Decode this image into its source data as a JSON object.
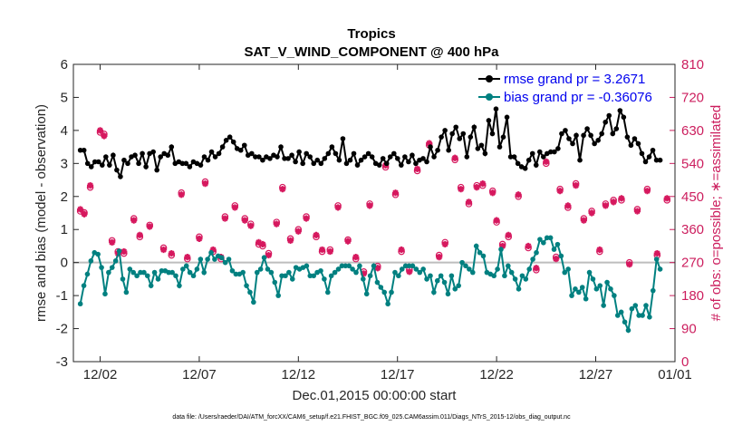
{
  "chart_data": {
    "type": "line",
    "title": "Tropics",
    "subtitle": "SAT_V_WIND_COMPONENT @ 400 hPa",
    "xlabel": "Dec.01,2015 00:00:00 start",
    "ylabel": "rmse and bias (model - observation)",
    "ylabel_right": "# of obs: o=possible; ∗=assimilated",
    "footnote": "data file: /Users/raeder/DAI/ATM_forcXX/CAM6_setup/f.e21.FHIST_BGC.f09_025.CAM6assim.011/Diags_NTrS_2015-12/obs_diag_output.nc",
    "xlim": [
      0.65,
      31
    ],
    "ylim": [
      -3,
      6
    ],
    "ylim_right": [
      0,
      810
    ],
    "xticks": [
      2,
      7,
      12,
      17,
      22,
      27,
      31
    ],
    "xtick_labels": [
      "12/02",
      "12/07",
      "12/12",
      "12/17",
      "12/22",
      "12/27",
      "01/01"
    ],
    "yticks": [
      -3,
      -2,
      -1,
      0,
      1,
      2,
      3,
      4,
      5,
      6
    ],
    "ytick_labels": [
      "-3",
      "-2",
      "-1",
      "0",
      "1",
      "2",
      "3",
      "4",
      "5",
      "6"
    ],
    "yticks_right": [
      0,
      90,
      180,
      270,
      360,
      450,
      540,
      630,
      720,
      810
    ],
    "ytick_labels_right": [
      "0",
      "90",
      "180",
      "270",
      "360",
      "450",
      "540",
      "630",
      "720",
      "810"
    ],
    "legend_position": "top-right",
    "colors": {
      "rmse": "#000000",
      "bias": "#008080",
      "obs": "#d6185e",
      "zero_line": "#bdbdbd",
      "legend_text": "#0000ee"
    },
    "series": [
      {
        "name": "rmse",
        "legend": "rmse grand pr = 3.2671",
        "values": [
          3.4,
          3.4,
          3.0,
          2.9,
          3.05,
          3.05,
          2.95,
          3.2,
          2.95,
          3.25,
          2.8,
          2.6,
          3.1,
          3.0,
          3.2,
          3.25,
          3.0,
          3.3,
          2.9,
          3.3,
          3.35,
          2.8,
          3.2,
          3.3,
          3.25,
          3.5,
          3.0,
          3.05,
          3.0,
          3.0,
          2.9,
          3.05,
          3.0,
          2.95,
          3.2,
          3.1,
          3.35,
          3.2,
          3.3,
          3.5,
          3.7,
          3.8,
          3.65,
          3.45,
          3.4,
          3.55,
          3.25,
          3.3,
          3.2,
          3.2,
          3.1,
          3.2,
          3.15,
          3.25,
          3.2,
          3.5,
          3.15,
          3.15,
          3.25,
          3.05,
          3.35,
          3.0,
          3.3,
          3.2,
          3.0,
          3.1,
          3.0,
          3.15,
          3.3,
          3.5,
          3.3,
          3.1,
          3.75,
          3.0,
          3.1,
          3.3,
          2.95,
          3.1,
          3.2,
          3.3,
          3.2,
          3.0,
          2.95,
          3.15,
          3.0,
          3.2,
          3.3,
          3.15,
          2.95,
          3.2,
          3.05,
          3.25,
          3.0,
          3.1,
          3.15,
          3.05,
          3.5,
          3.2,
          3.4,
          3.8,
          4.0,
          3.4,
          3.9,
          4.1,
          3.75,
          3.9,
          3.2,
          3.8,
          4.1,
          3.45,
          3.55,
          3.3,
          4.3,
          3.9,
          4.65,
          3.5,
          3.8,
          4.4,
          3.2,
          3.2,
          3.0,
          2.9,
          2.85,
          3.1,
          3.3,
          2.95,
          3.35,
          3.2,
          3.3,
          3.35,
          3.35,
          3.45,
          3.9,
          4.0,
          3.75,
          3.6,
          3.85,
          3.1,
          3.85,
          4.05,
          3.85,
          3.6,
          3.7,
          3.9,
          4.25,
          4.45,
          3.9,
          4.05,
          4.6,
          4.4,
          3.8,
          3.55,
          3.75,
          3.6,
          3.3,
          3.05,
          3.2,
          3.4,
          3.1,
          3.1
        ],
        "markers": "filled-circle"
      },
      {
        "name": "bias",
        "legend": "bias grand pr = -0.36076",
        "values": [
          -1.25,
          -0.7,
          -0.35,
          0.05,
          0.3,
          0.25,
          -0.15,
          -0.95,
          -0.3,
          -0.15,
          0.05,
          0.35,
          -0.5,
          -0.9,
          -0.2,
          -0.3,
          -0.4,
          -0.3,
          -0.3,
          -0.4,
          -0.7,
          -0.3,
          -0.5,
          -0.25,
          -0.25,
          -0.3,
          -0.3,
          -0.4,
          -0.7,
          -0.2,
          -0.1,
          -0.3,
          -0.4,
          -0.2,
          0.1,
          -0.3,
          0.1,
          0.3,
          0.1,
          0.2,
          0.15,
          0.0,
          0.1,
          -0.25,
          -0.35,
          -0.35,
          -0.3,
          -0.7,
          -0.9,
          -1.2,
          -0.3,
          -0.2,
          0.15,
          -0.2,
          -0.3,
          -0.6,
          -1.0,
          -0.4,
          -0.4,
          -0.3,
          -0.5,
          -0.15,
          -0.2,
          -0.15,
          -0.1,
          -0.4,
          -0.4,
          -0.3,
          -0.25,
          -0.5,
          -0.9,
          -0.4,
          -0.3,
          -0.2,
          -0.1,
          -0.1,
          -0.1,
          -0.2,
          -0.3,
          -0.1,
          -0.5,
          -0.95,
          -0.4,
          -0.1,
          -0.6,
          -0.75,
          -0.9,
          -1.25,
          -0.9,
          -0.3,
          -0.4,
          -0.2,
          -0.1,
          -0.1,
          -0.1,
          -0.2,
          -0.3,
          -0.2,
          -0.5,
          -0.4,
          -0.9,
          -0.55,
          -0.4,
          -0.6,
          -0.95,
          -0.4,
          -0.8,
          -0.7,
          0.0,
          -0.1,
          -0.2,
          -0.3,
          0.5,
          0.3,
          0.2,
          -0.3,
          -0.35,
          -0.4,
          -0.2,
          0.4,
          -0.4,
          -0.1,
          -0.3,
          -0.5,
          -0.8,
          -0.4,
          -0.5,
          -0.2,
          0.1,
          0.3,
          0.7,
          0.6,
          0.75,
          0.75,
          0.4,
          0.55,
          0.2,
          -0.3,
          -0.2,
          -1.0,
          -0.8,
          -0.9,
          -0.75,
          -1.1,
          -0.3,
          -0.5,
          -0.8,
          -0.7,
          -1.3,
          -0.6,
          -0.8,
          -1.0,
          -1.6,
          -1.5,
          -1.8,
          -2.05,
          -1.4,
          -1.3,
          -1.6,
          -1.6,
          -1.3,
          -1.65,
          -0.85,
          0.1,
          -0.2
        ],
        "markers": "filled-circle"
      }
    ],
    "obs_possible": {
      "x": [
        1.0,
        1.2,
        1.5,
        2.0,
        2.2,
        2.6,
        2.9,
        3.2,
        3.7,
        4.0,
        4.5,
        5.2,
        5.6,
        6.1,
        6.4,
        7.0,
        7.3,
        7.7,
        8.1,
        8.3,
        8.8,
        9.3,
        9.6,
        10.0,
        10.2,
        10.5,
        10.9,
        11.2,
        11.6,
        12.0,
        12.4,
        12.9,
        13.2,
        13.6,
        14.0,
        14.5,
        14.9,
        15.3,
        15.6,
        16.0,
        16.4,
        16.9,
        17.2,
        17.6,
        18.0,
        18.6,
        19.1,
        19.4,
        19.9,
        20.2,
        20.6,
        21.0,
        21.3,
        21.8,
        22.0,
        22.3,
        22.6,
        23.1,
        23.6,
        24.0,
        24.5,
        25.0,
        25.2,
        25.6,
        26.0,
        26.4,
        26.8,
        27.2,
        27.5,
        27.9,
        28.3,
        28.7,
        29.1,
        29.6,
        30.1,
        30.6
      ],
      "y": [
        410,
        406,
        475,
        625,
        620,
        330,
        300,
        295,
        390,
        340,
        372,
        310,
        290,
        460,
        280,
        340,
        490,
        300,
        280,
        395,
        425,
        390,
        375,
        320,
        315,
        295,
        380,
        475,
        335,
        360,
        395,
        340,
        300,
        305,
        425,
        332,
        280,
        245,
        430,
        260,
        530,
        455,
        300,
        250,
        520,
        590,
        290,
        325,
        550,
        475,
        430,
        480,
        480,
        465,
        380,
        320,
        340,
        450,
        310,
        250,
        540,
        285,
        470,
        420,
        485,
        390,
        410,
        300,
        430,
        440,
        440,
        270,
        415,
        470,
        290,
        440
      ]
    },
    "obs_assimilated": {
      "x": [
        1.0,
        1.2,
        1.5,
        2.0,
        2.2,
        2.6,
        2.9,
        3.2,
        3.7,
        4.0,
        4.5,
        5.2,
        5.6,
        6.1,
        6.4,
        7.0,
        7.3,
        7.7,
        8.1,
        8.3,
        8.8,
        9.3,
        9.6,
        10.0,
        10.2,
        10.5,
        10.9,
        11.2,
        11.6,
        12.0,
        12.4,
        12.9,
        13.2,
        13.6,
        14.0,
        14.5,
        14.9,
        15.3,
        15.6,
        16.0,
        16.4,
        16.9,
        17.2,
        17.6,
        18.0,
        18.6,
        19.1,
        19.4,
        19.9,
        20.2,
        20.6,
        21.0,
        21.3,
        21.8,
        22.0,
        22.3,
        22.6,
        23.1,
        23.6,
        24.0,
        24.5,
        25.0,
        25.2,
        25.6,
        26.0,
        26.4,
        26.8,
        27.2,
        27.5,
        27.9,
        28.3,
        28.7,
        29.1,
        29.6,
        30.1,
        30.6
      ],
      "y": [
        415,
        402,
        480,
        630,
        615,
        325,
        295,
        300,
        385,
        345,
        368,
        305,
        295,
        455,
        285,
        335,
        485,
        305,
        285,
        390,
        420,
        385,
        370,
        325,
        320,
        290,
        375,
        470,
        330,
        355,
        390,
        345,
        305,
        300,
        420,
        328,
        285,
        240,
        425,
        255,
        535,
        460,
        305,
        245,
        525,
        595,
        285,
        320,
        555,
        470,
        435,
        475,
        485,
        460,
        385,
        315,
        345,
        455,
        315,
        255,
        545,
        280,
        465,
        425,
        480,
        385,
        405,
        305,
        425,
        435,
        445,
        265,
        410,
        465,
        295,
        445
      ]
    }
  }
}
